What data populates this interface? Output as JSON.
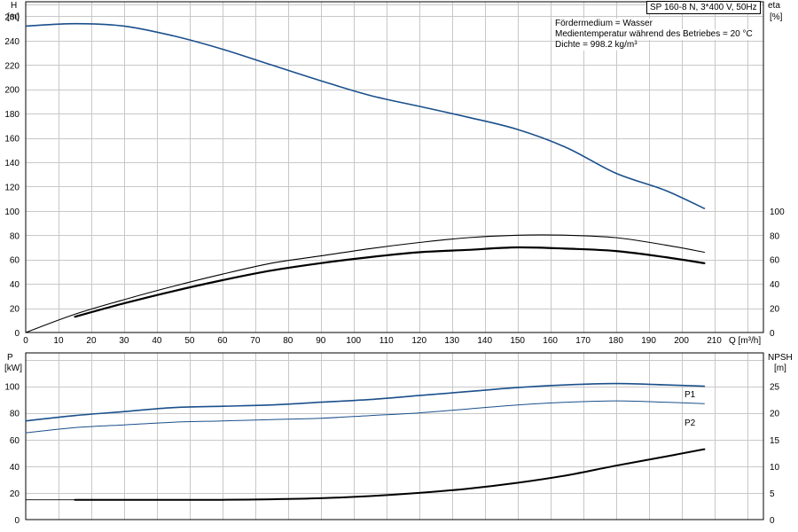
{
  "title": "SP 160-8 N, 3*400 V, 50Hz",
  "info_lines": [
    "Fördermedium = Wasser",
    "Medientemperatur während des Betriebes = 20 °C",
    "Dichte = 998.2 kg/m³"
  ],
  "colors": {
    "blue": "#1a4f8b",
    "black": "#000000",
    "grid": "#c8c8c8"
  },
  "chart_data": [
    {
      "type": "line",
      "x_axis": {
        "label": "Q [m³/h]",
        "lim": [
          0,
          225
        ],
        "ticks": [
          0,
          10,
          20,
          30,
          40,
          50,
          60,
          70,
          80,
          90,
          100,
          110,
          120,
          130,
          140,
          150,
          160,
          170,
          180,
          190,
          200,
          210
        ]
      },
      "y_left": {
        "label_top": "H",
        "label_unit": "[m]",
        "lim": [
          0,
          272
        ],
        "ticks": [
          0,
          20,
          40,
          60,
          80,
          100,
          120,
          140,
          160,
          180,
          200,
          220,
          240,
          260
        ]
      },
      "y_right": {
        "label_top": "eta",
        "label_unit": "[%]",
        "ticks": [
          0,
          20,
          40,
          60,
          80,
          100
        ]
      },
      "grid": true,
      "series": [
        {
          "key": "H",
          "axis": "left",
          "color": "#1a4f8b",
          "width": 1.6,
          "x": [
            0,
            15,
            30,
            45,
            60,
            75,
            90,
            105,
            120,
            135,
            150,
            165,
            180,
            195,
            207
          ],
          "y": [
            252,
            254,
            252,
            244,
            233,
            220,
            207,
            195,
            186,
            177,
            167,
            152,
            131,
            117,
            102
          ]
        },
        {
          "key": "eta_thin",
          "axis": "right",
          "color": "#000000",
          "width": 1.1,
          "x": [
            0,
            15,
            30,
            45,
            60,
            75,
            90,
            105,
            120,
            135,
            150,
            165,
            180,
            195,
            207
          ],
          "y": [
            0,
            15,
            27,
            38,
            48,
            57,
            63,
            69,
            74,
            78,
            80,
            80,
            78,
            72,
            66
          ]
        },
        {
          "key": "eta_thick",
          "axis": "right",
          "color": "#000000",
          "width": 2.2,
          "x": [
            15,
            30,
            45,
            60,
            75,
            90,
            105,
            120,
            135,
            150,
            165,
            180,
            195,
            207
          ],
          "y": [
            13,
            24,
            34,
            43,
            51,
            57,
            62,
            66,
            68,
            70,
            69,
            67,
            62,
            57
          ]
        }
      ]
    },
    {
      "type": "line",
      "x_axis": {
        "lim": [
          0,
          225
        ]
      },
      "y_left": {
        "label_top": "P",
        "label_unit": "[kW]",
        "lim": [
          0,
          125
        ],
        "ticks": [
          0,
          20,
          40,
          60,
          80,
          100
        ]
      },
      "y_right": {
        "label_top": "NPSH",
        "label_unit": "[m]",
        "lim": [
          0,
          31.25
        ],
        "ticks": [
          0,
          5,
          10,
          15,
          20,
          25
        ]
      },
      "grid": true,
      "series": [
        {
          "name": "P1",
          "axis": "left",
          "color": "#1a4f8b",
          "width": 1.6,
          "x": [
            0,
            15,
            30,
            45,
            60,
            75,
            90,
            105,
            120,
            135,
            150,
            165,
            180,
            195,
            207
          ],
          "y": [
            74,
            78,
            81,
            84,
            85,
            86,
            88,
            90,
            93,
            96,
            99,
            101,
            102,
            101,
            100
          ]
        },
        {
          "name": "P2",
          "axis": "left",
          "color": "#1a4f8b",
          "width": 1.0,
          "x": [
            0,
            15,
            30,
            45,
            60,
            75,
            90,
            105,
            120,
            135,
            150,
            165,
            180,
            195,
            207
          ],
          "y": [
            65,
            69,
            71,
            73,
            74,
            75,
            76,
            78,
            80,
            83,
            86,
            88,
            89,
            88,
            87
          ]
        },
        {
          "key": "NPSH",
          "axis": "right",
          "color": "#000000",
          "width": 2.0,
          "x": [
            15,
            30,
            45,
            60,
            75,
            90,
            105,
            120,
            135,
            150,
            165,
            180,
            195,
            207
          ],
          "y": [
            3.7,
            3.7,
            3.7,
            3.7,
            3.8,
            4.0,
            4.4,
            5.0,
            5.8,
            6.9,
            8.3,
            10.1,
            11.8,
            13.2
          ]
        },
        {
          "key": "NPSH_lead",
          "axis": "right",
          "color": "#000000",
          "width": 0.8,
          "x": [
            0,
            15
          ],
          "y": [
            3.7,
            3.7
          ]
        }
      ]
    }
  ]
}
